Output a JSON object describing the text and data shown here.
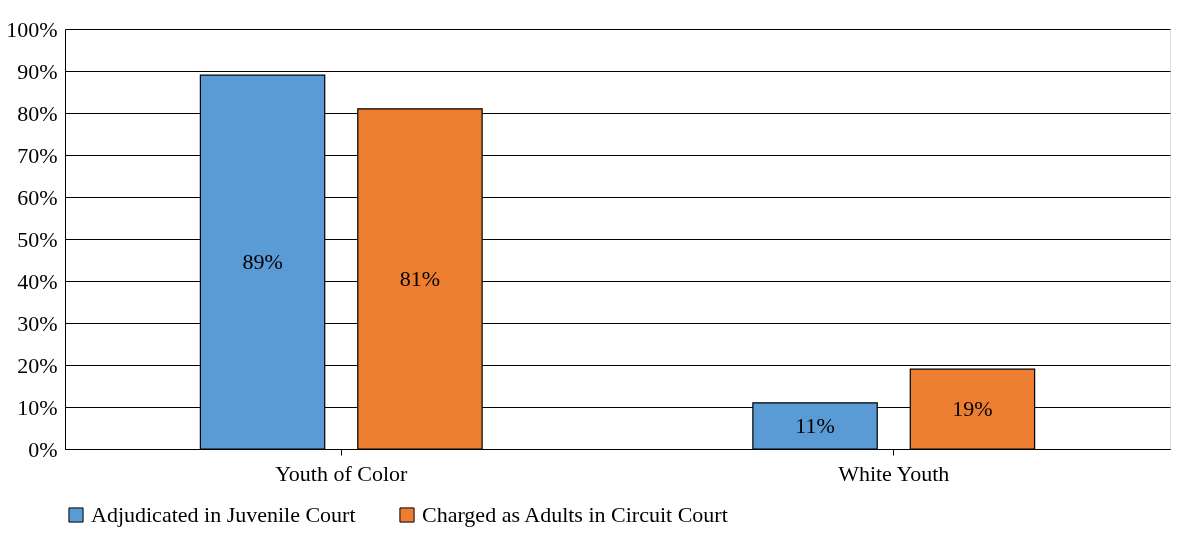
{
  "chart_data": {
    "type": "bar",
    "categories": [
      "Youth of Color",
      "White Youth"
    ],
    "series": [
      {
        "name": "Adjudicated in Juvenile Court",
        "color": "#5b9bd5",
        "values": [
          89,
          11
        ],
        "value_labels": [
          "89%",
          "11%"
        ]
      },
      {
        "name": "Charged as Adults in Circuit Court",
        "color": "#ed7d31",
        "values": [
          81,
          19
        ],
        "value_labels": [
          "81%",
          "19%"
        ]
      }
    ],
    "ylim": [
      0,
      100
    ],
    "yticks": [
      {
        "value": 0,
        "label": "0%"
      },
      {
        "value": 10,
        "label": "10%"
      },
      {
        "value": 20,
        "label": "20%"
      },
      {
        "value": 30,
        "label": "30%"
      },
      {
        "value": 40,
        "label": "40%"
      },
      {
        "value": 50,
        "label": "50%"
      },
      {
        "value": 60,
        "label": "60%"
      },
      {
        "value": 70,
        "label": "70%"
      },
      {
        "value": 80,
        "label": "80%"
      },
      {
        "value": 90,
        "label": "90%"
      },
      {
        "value": 100,
        "label": "100%"
      }
    ],
    "grid": "y",
    "legend": "bottom"
  }
}
